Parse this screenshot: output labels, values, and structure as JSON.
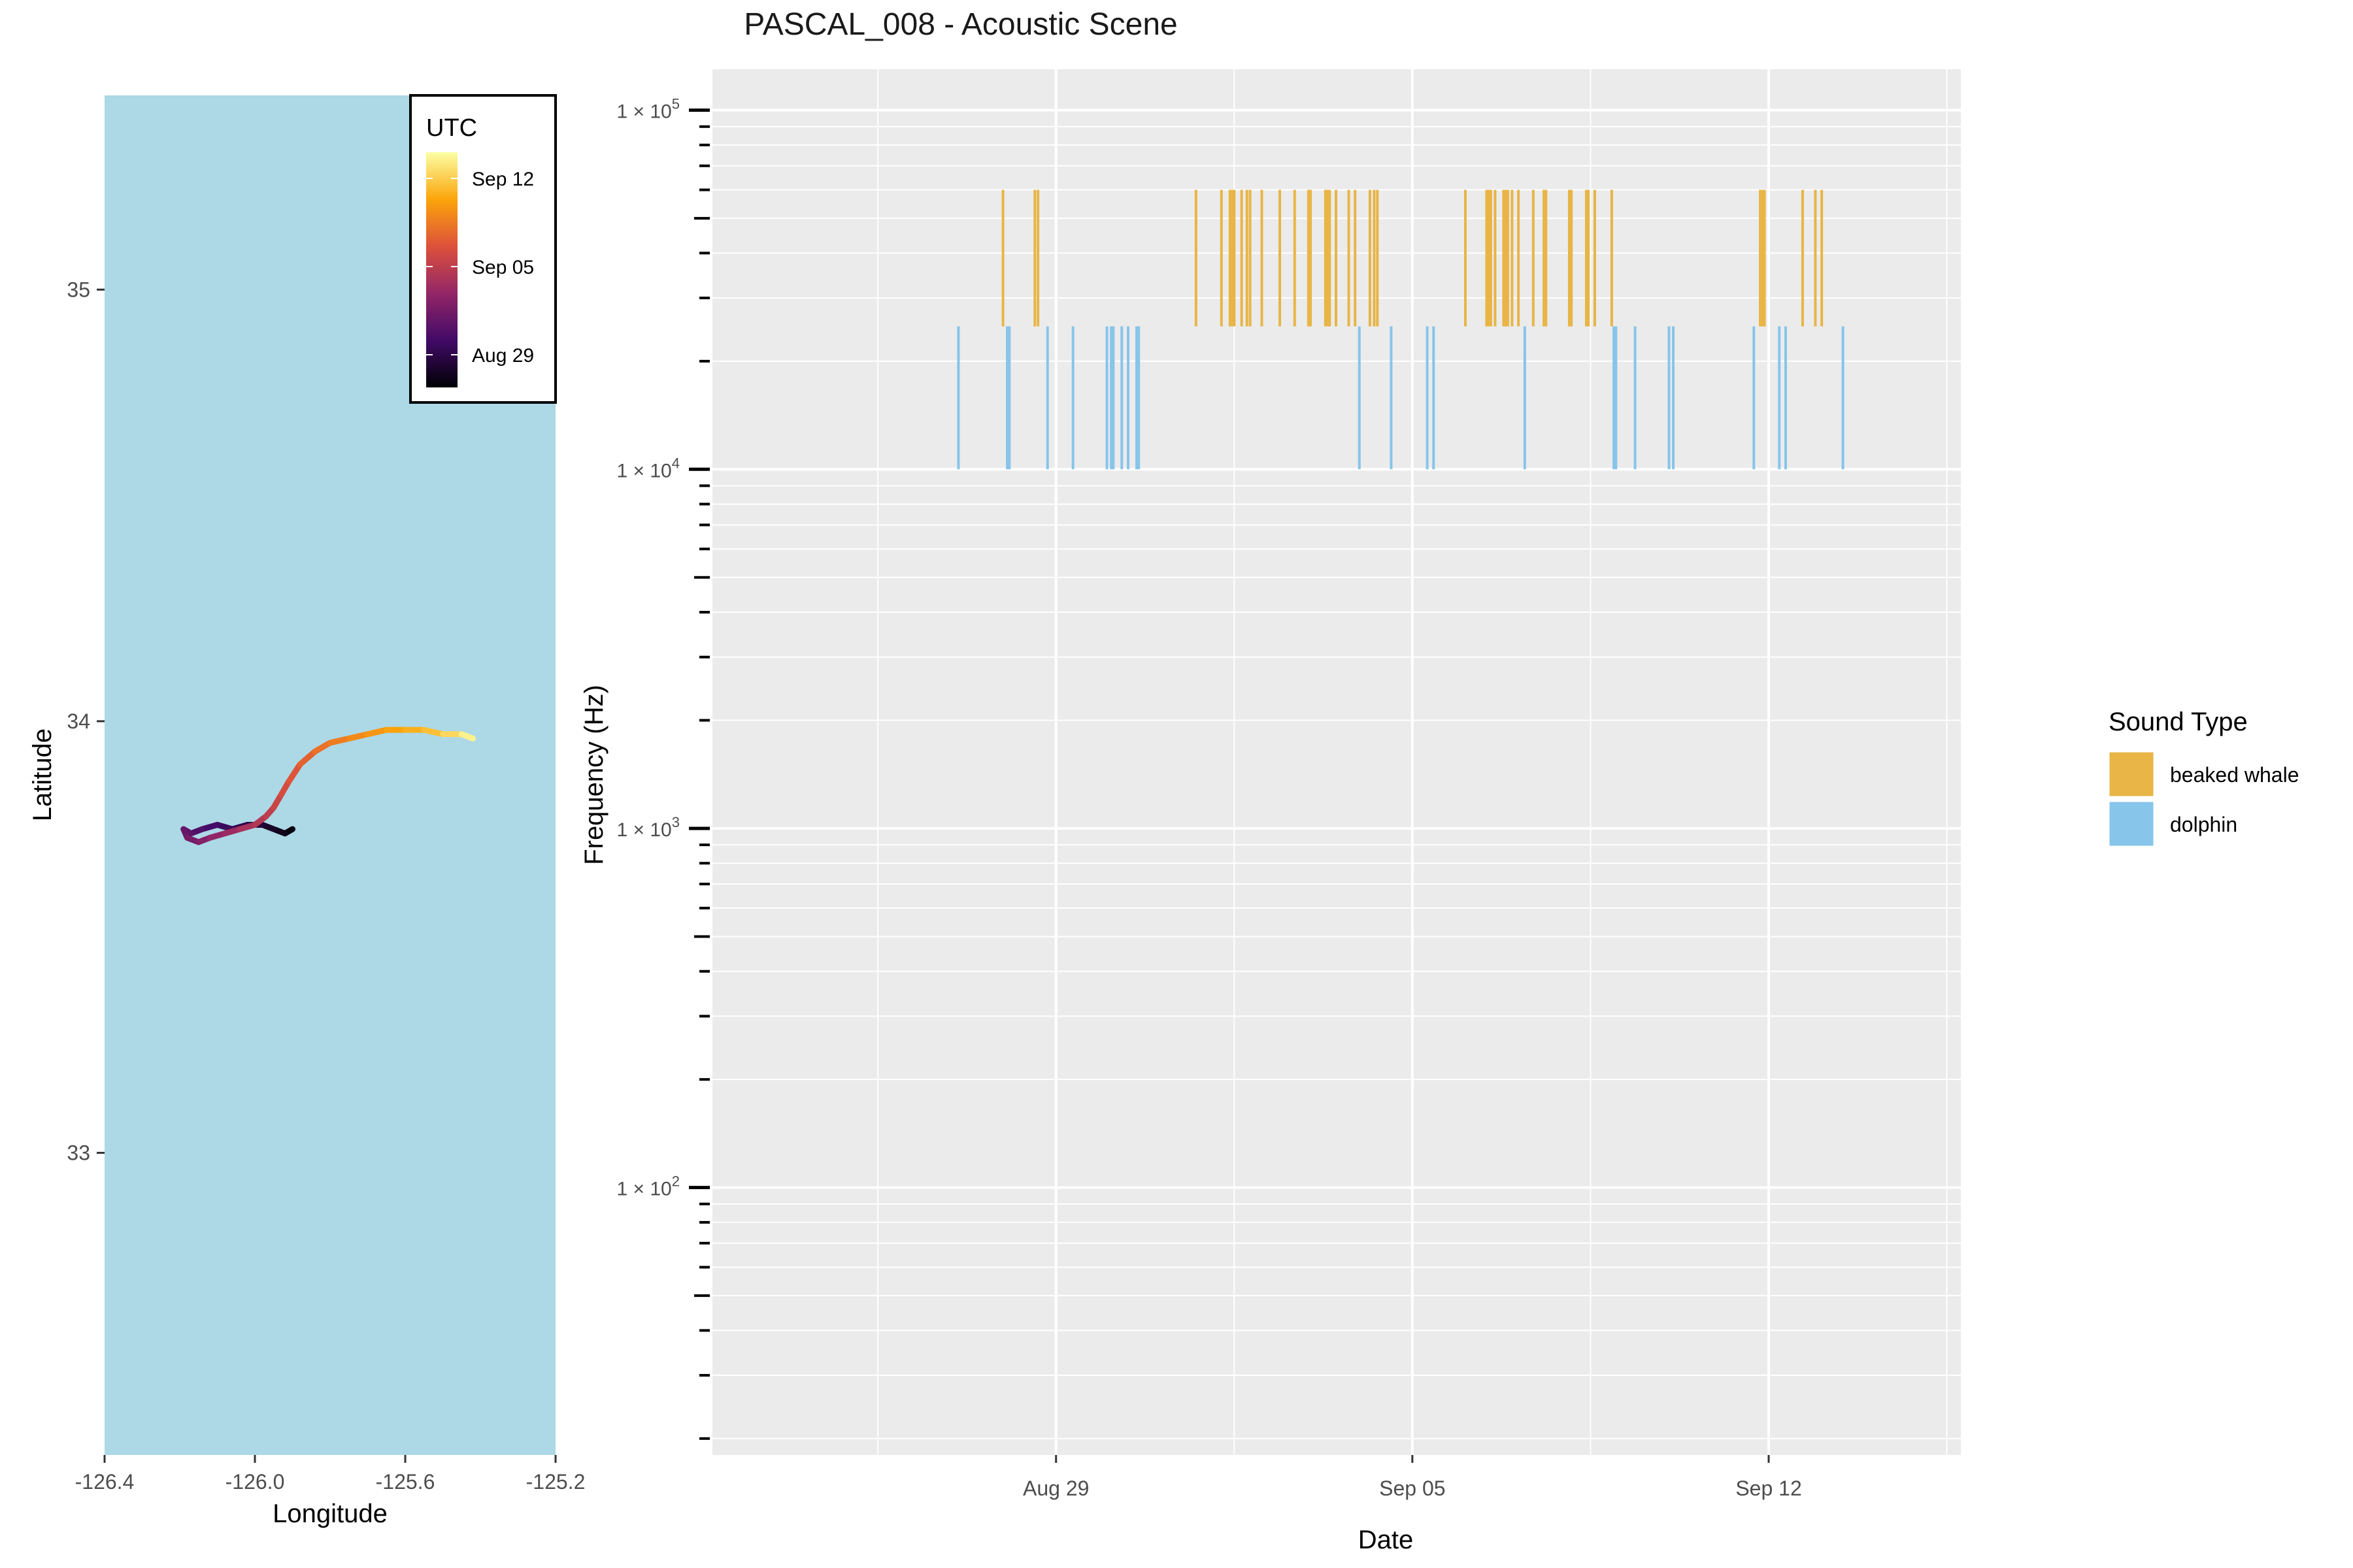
{
  "title": "PASCAL_008 - Acoustic Scene",
  "chart_data": [
    {
      "type": "scatter",
      "panel": "map",
      "xlabel": "Longitude",
      "ylabel": "Latitude",
      "xlim": [
        -126.4,
        -125.2
      ],
      "ylim": [
        32.3,
        35.45
      ],
      "x_ticks": [
        -126.4,
        -126.0,
        -125.6,
        -125.2
      ],
      "x_tick_labels": [
        "-126.4",
        "-126.0",
        "-125.6",
        "-125.2"
      ],
      "y_ticks": [
        33,
        34,
        35
      ],
      "y_tick_labels": [
        "33",
        "34",
        "35"
      ],
      "background_color": "#add8e6",
      "legend": {
        "title": "UTC",
        "type": "colorbar",
        "labels": [
          "Sep 12",
          "Sep 05",
          "Aug 29"
        ],
        "colors": [
          "#fcffa4",
          "#fca50a",
          "#dd513a",
          "#932667",
          "#420a68",
          "#000004"
        ],
        "placement": "top-right"
      },
      "track": {
        "lon": [
          -125.9,
          -125.92,
          -125.95,
          -125.98,
          -126.02,
          -126.06,
          -126.1,
          -126.14,
          -126.17,
          -126.19,
          -126.18,
          -126.15,
          -126.12,
          -126.08,
          -126.04,
          -126.0,
          -125.97,
          -125.95,
          -125.93,
          -125.91,
          -125.88,
          -125.84,
          -125.8,
          -125.75,
          -125.7,
          -125.65,
          -125.6,
          -125.55,
          -125.5,
          -125.45,
          -125.42
        ],
        "lat": [
          33.75,
          33.74,
          33.75,
          33.76,
          33.76,
          33.75,
          33.76,
          33.75,
          33.74,
          33.75,
          33.73,
          33.72,
          33.73,
          33.74,
          33.75,
          33.76,
          33.78,
          33.8,
          33.83,
          33.86,
          33.9,
          33.93,
          33.95,
          33.96,
          33.97,
          33.98,
          33.98,
          33.98,
          33.97,
          33.97,
          33.96
        ],
        "t": [
          0,
          0.03,
          0.06,
          0.09,
          0.12,
          0.16,
          0.19,
          0.22,
          0.25,
          0.28,
          0.31,
          0.34,
          0.38,
          0.41,
          0.44,
          0.47,
          0.5,
          0.53,
          0.56,
          0.59,
          0.62,
          0.66,
          0.69,
          0.72,
          0.75,
          0.78,
          0.81,
          0.84,
          0.88,
          0.94,
          1.0
        ]
      }
    },
    {
      "type": "bar",
      "panel": "acoustic",
      "xlabel": "Date",
      "ylabel": "Frequency (Hz)",
      "y_scale": "log10",
      "xlim": [
        "2019-08-22T06:00",
        "2019-09-16T10:00"
      ],
      "ylim": [
        18,
        130000
      ],
      "x_tick_labels": [
        "Aug 29",
        "Sep 05",
        "Sep 12"
      ],
      "x_ticks": [
        "2019-08-29",
        "2019-09-05",
        "2019-09-12"
      ],
      "y_tick_base": "10",
      "y_tick_exponents": [
        "5",
        "4",
        "3",
        "2"
      ],
      "y_ticks": [
        100000,
        10000,
        1000,
        100
      ],
      "grid": true,
      "legend": {
        "title": "Sound Type",
        "placement": "right"
      },
      "series": [
        {
          "name": "beaked whale",
          "color": "#e8b546",
          "freq_range": [
            25000,
            60000
          ],
          "events": [
            "2019-08-27T23:00",
            "2019-08-28T14:00",
            "2019-08-28T15:30",
            "2019-08-31T18:00",
            "2019-09-01T06:00",
            "2019-09-01T10:00",
            "2019-09-01T11:00",
            "2019-09-01T12:00",
            "2019-09-01T15:30",
            "2019-09-01T18:00",
            "2019-09-01T19:30",
            "2019-09-02T01:00",
            "2019-09-02T09:30",
            "2019-09-02T16:30",
            "2019-09-02T23:00",
            "2019-09-03T00:00",
            "2019-09-03T07:00",
            "2019-09-03T08:00",
            "2019-09-03T09:00",
            "2019-09-03T12:00",
            "2019-09-03T18:00",
            "2019-09-03T21:00",
            "2019-09-04T04:00",
            "2019-09-04T06:00",
            "2019-09-04T07:30",
            "2019-09-06T01:00",
            "2019-09-06T11:00",
            "2019-09-06T12:00",
            "2019-09-06T13:00",
            "2019-09-06T15:00",
            "2019-09-06T19:00",
            "2019-09-06T20:00",
            "2019-09-06T21:00",
            "2019-09-06T23:00",
            "2019-09-07T02:00",
            "2019-09-07T09:00",
            "2019-09-07T14:00",
            "2019-09-07T15:00",
            "2019-09-08T02:00",
            "2019-09-08T03:00",
            "2019-09-08T10:00",
            "2019-09-08T11:00",
            "2019-09-08T14:00",
            "2019-09-08T22:00",
            "2019-09-11T20:00",
            "2019-09-11T21:00",
            "2019-09-11T22:00",
            "2019-09-12T16:00",
            "2019-09-12T22:00",
            "2019-09-13T01:00"
          ]
        },
        {
          "name": "dolphin",
          "color": "#87c5ea",
          "freq_range": [
            10000,
            25000
          ],
          "events": [
            "2019-08-27T02:00",
            "2019-08-28T01:00",
            "2019-08-28T02:00",
            "2019-08-28T20:00",
            "2019-08-29T08:00",
            "2019-08-30T00:00",
            "2019-08-30T02:00",
            "2019-08-30T03:00",
            "2019-08-30T07:00",
            "2019-08-30T10:00",
            "2019-08-30T14:00",
            "2019-08-30T15:00",
            "2019-09-03T23:00",
            "2019-09-04T14:00",
            "2019-09-05T07:00",
            "2019-09-05T10:00",
            "2019-09-07T05:00",
            "2019-09-08T23:00",
            "2019-09-09T00:00",
            "2019-09-09T09:00",
            "2019-09-10T01:00",
            "2019-09-10T03:00",
            "2019-09-11T17:00",
            "2019-09-12T05:00",
            "2019-09-12T08:00",
            "2019-09-13T11:00"
          ]
        }
      ]
    }
  ]
}
